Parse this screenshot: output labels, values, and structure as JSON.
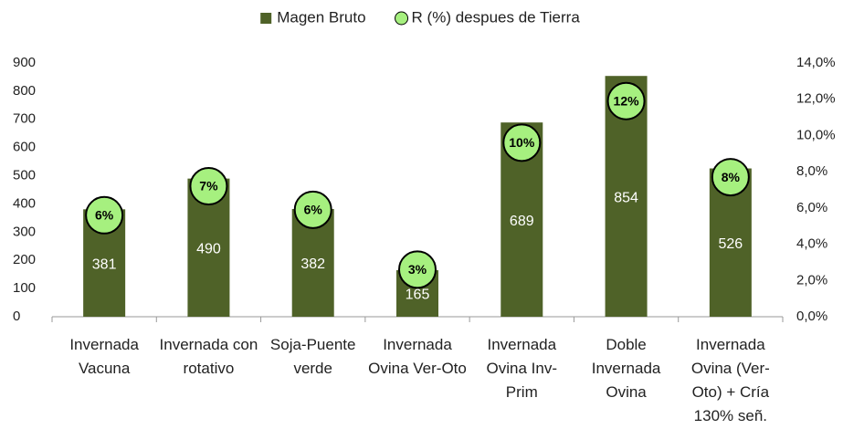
{
  "chart_data": {
    "type": "bar",
    "categories": [
      "Invernada Vacuna",
      "Invernada con rotativo",
      "Soja-Puente verde",
      "Invernada Ovina Ver-Oto",
      "Invernada Ovina Inv-Prim",
      "Doble Invernada Ovina",
      "Invernada Ovina (Ver-Oto) + Cría 130% señ."
    ],
    "series": [
      {
        "name": "Magen Bruto",
        "color": "#4f6228",
        "values": [
          381,
          490,
          382,
          165,
          689,
          854,
          526
        ]
      },
      {
        "name": "R (%) despues de Tierra",
        "color": "#a6f07f",
        "axis": "y2",
        "values": [
          5.6,
          7.2,
          5.9,
          2.6,
          9.6,
          11.9,
          7.7
        ],
        "value_labels": [
          "6%",
          "7%",
          "6%",
          "3%",
          "10%",
          "12%",
          "8%"
        ]
      }
    ],
    "ylim": [
      0,
      900
    ],
    "yticks": [
      0,
      100,
      200,
      300,
      400,
      500,
      600,
      700,
      800,
      900
    ],
    "y2lim": [
      0,
      14
    ],
    "y2ticks": [
      {
        "value": 0,
        "label": "0,0%"
      },
      {
        "value": 2,
        "label": "2,0%"
      },
      {
        "value": 4,
        "label": "4,0%"
      },
      {
        "value": 6,
        "label": "6,0%"
      },
      {
        "value": 8,
        "label": "8,0%"
      },
      {
        "value": 10,
        "label": "10,0%"
      },
      {
        "value": 12,
        "label": "12,0%"
      },
      {
        "value": 14,
        "label": "14,0%"
      }
    ],
    "legend": "top"
  }
}
